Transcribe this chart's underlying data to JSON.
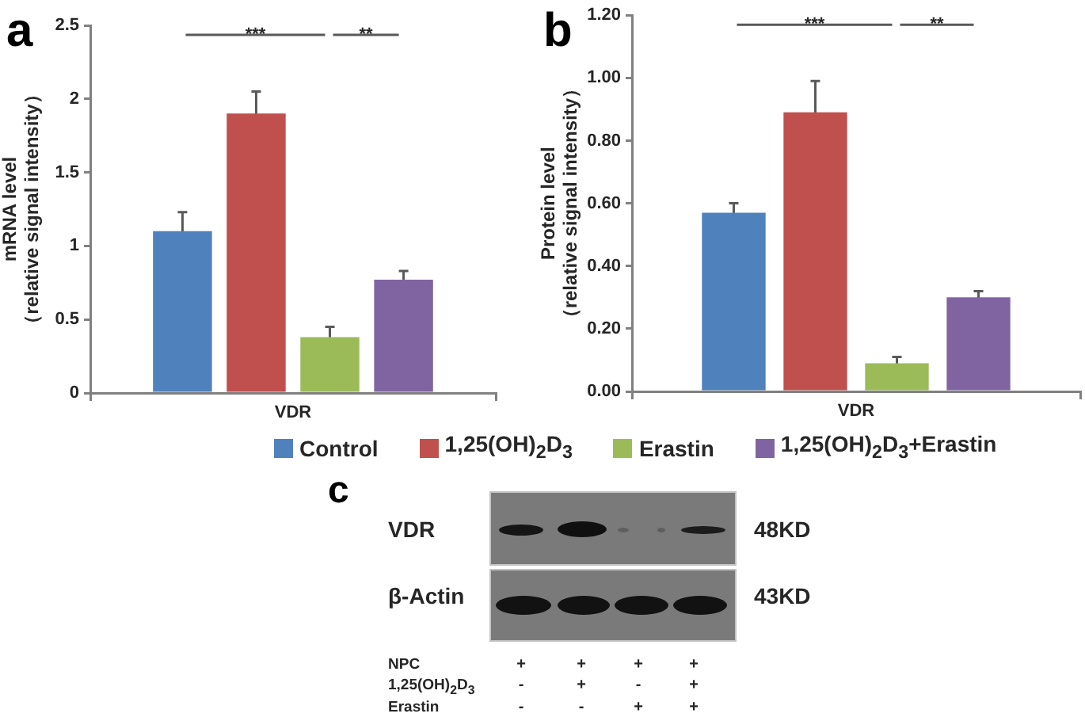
{
  "chart_data": [
    {
      "type": "bar",
      "title": "a",
      "categories": [
        "VDR"
      ],
      "ylabel": "mRNA level\n（relative signal intensity）",
      "ylim": [
        0,
        2.5
      ],
      "yticks": [
        0,
        0.5,
        1,
        1.5,
        2,
        2.5
      ],
      "legend": "bottom",
      "annotations": [
        "***",
        "**"
      ],
      "series": [
        {
          "name": "Control",
          "color": "#4f81bd",
          "values": [
            1.1
          ],
          "errors": [
            0.13
          ]
        },
        {
          "name": "1,25(OH)$_{2}$D$_{3}$",
          "color": "#c0504d",
          "values": [
            1.9
          ],
          "errors": [
            0.15
          ]
        },
        {
          "name": "Erastin",
          "color": "#9bbb59",
          "values": [
            0.38
          ],
          "errors": [
            0.07
          ]
        },
        {
          "name": "1,25(OH)$_{2}$D$_{3}$+Erastin",
          "color": "#8064a2",
          "values": [
            0.77
          ],
          "errors": [
            0.06
          ]
        }
      ]
    },
    {
      "type": "bar",
      "title": "b",
      "categories": [
        "VDR"
      ],
      "ylabel": "Protein level\n（relative signal intensity）",
      "ylim": [
        0,
        1.2
      ],
      "yticks": [
        {
          "value": 0,
          "label": "0.00"
        },
        {
          "value": 0.2,
          "label": "0.20"
        },
        {
          "value": 0.4,
          "label": "0.40"
        },
        {
          "value": 0.6,
          "label": "0.60"
        },
        {
          "value": 0.8,
          "label": "0.80"
        },
        {
          "value": 1,
          "label": "1.00"
        },
        {
          "value": 1.2,
          "label": "1.20"
        }
      ],
      "annotations": [
        "***",
        "**"
      ],
      "series": [
        {
          "color": "#4f81bd",
          "values": [
            0.57
          ],
          "errors": [
            0.03
          ]
        },
        {
          "color": "#c0504d",
          "values": [
            0.89
          ],
          "errors": [
            0.1
          ]
        },
        {
          "color": "#9bbb59",
          "values": [
            0.09
          ],
          "errors": [
            0.02
          ]
        },
        {
          "color": "#8064a2",
          "values": [
            0.3
          ],
          "errors": [
            0.02
          ]
        }
      ]
    },
    {
      "type": "other",
      "title": "c",
      "annotations": [
        "VDR",
        "48KD",
        "β-Actin",
        "43KD",
        "NPC",
        "+",
        "+",
        "+",
        "+",
        "1,25(OH)$_{2}$D$_{3}$",
        "-",
        "+",
        "-",
        "+",
        "Erastin",
        "-",
        "-",
        "+",
        "+"
      ]
    }
  ]
}
